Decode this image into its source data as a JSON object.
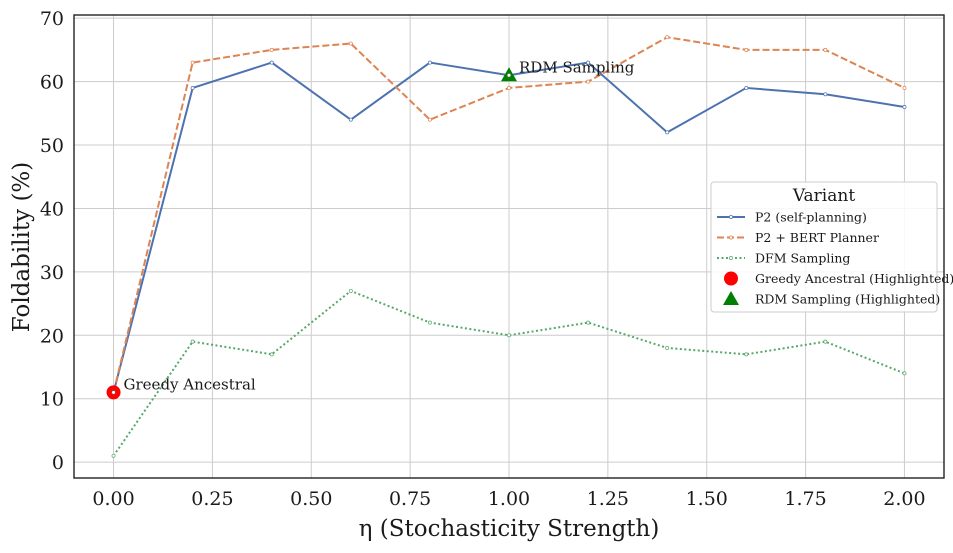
{
  "chart_data": {
    "type": "line",
    "title": "",
    "xlabel": "η (Stochasticity Strength)",
    "ylabel": "Foldability (%)",
    "xlim": [
      -0.1,
      2.1
    ],
    "ylim": [
      -2.5,
      70.5
    ],
    "xticks": [
      0.0,
      0.25,
      0.5,
      0.75,
      1.0,
      1.25,
      1.5,
      1.75,
      2.0
    ],
    "xtick_labels": [
      "0.00",
      "0.25",
      "0.50",
      "0.75",
      "1.00",
      "1.25",
      "1.50",
      "1.75",
      "2.00"
    ],
    "yticks": [
      0,
      10,
      20,
      30,
      40,
      50,
      60,
      70
    ],
    "ytick_labels": [
      "0",
      "10",
      "20",
      "30",
      "40",
      "50",
      "60",
      "70"
    ],
    "grid": true,
    "x": [
      0.0,
      0.2,
      0.4,
      0.6,
      0.8,
      1.0,
      1.2,
      1.4,
      1.6,
      1.8,
      2.0
    ],
    "series": [
      {
        "name": "P2 (self-planning)",
        "color": "#4c72b0",
        "dash": "solid",
        "values": [
          11,
          59,
          63,
          54,
          63,
          61,
          63,
          52,
          59,
          58,
          56
        ]
      },
      {
        "name": "P2 + BERT Planner",
        "color": "#dd8452",
        "dash": "dashed",
        "values": [
          11,
          63,
          65,
          66,
          54,
          59,
          60,
          67,
          65,
          65,
          59
        ]
      },
      {
        "name": "DFM Sampling",
        "color": "#55a868",
        "dash": "dotted",
        "values": [
          1,
          19,
          17,
          27,
          22,
          20,
          22,
          18,
          17,
          19,
          14
        ]
      }
    ],
    "highlights": [
      {
        "name": "Greedy Ancestral (Highlighted)",
        "marker": "circle",
        "color": "#ff0000",
        "x": 0.0,
        "y": 11
      },
      {
        "name": "RDM Sampling (Highlighted)",
        "marker": "triangle",
        "color": "#008000",
        "x": 1.0,
        "y": 61
      }
    ],
    "annotations": [
      {
        "text": "Greedy Ancestral",
        "x": 0.0,
        "y": 11
      },
      {
        "text": "RDM Sampling",
        "x": 1.0,
        "y": 61
      }
    ],
    "legend": {
      "title": "Variant",
      "placement": "center-right"
    }
  }
}
